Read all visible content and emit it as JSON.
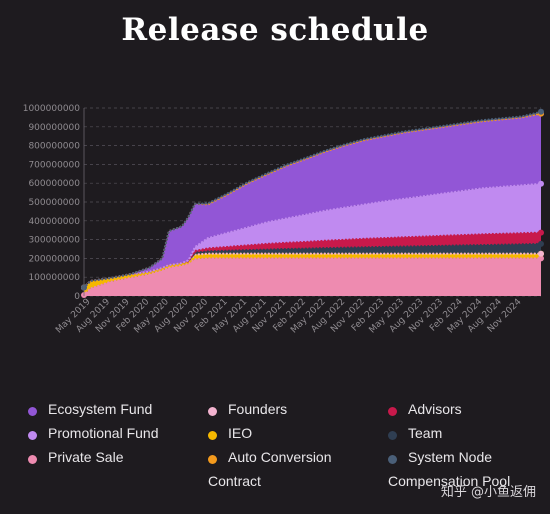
{
  "title": "Release schedule",
  "watermark": "知乎 @小鱼返佣",
  "chart_data": {
    "type": "area",
    "stacked": true,
    "title": "Release schedule",
    "xlabel": "",
    "ylabel": "",
    "ylim": [
      0,
      1000000000
    ],
    "y_ticks": [
      "0",
      "100000000",
      "200000000",
      "300000000",
      "400000000",
      "500000000",
      "600000000",
      "700000000",
      "800000000",
      "900000000",
      "1000000000"
    ],
    "x_ticks": [
      "May 2019",
      "Aug 2019",
      "Nov 2019",
      "Feb 2020",
      "May 2020",
      "Aug 2020",
      "Nov 2020",
      "Feb 2021",
      "May 2021",
      "Aug 2021",
      "Nov 2021",
      "Feb 2022",
      "May 2022",
      "Aug 2022",
      "Nov 2022",
      "Feb 2023",
      "May 2023",
      "Aug 2023",
      "Nov 2023",
      "Feb 2024",
      "May 2024",
      "Aug 2024",
      "Nov 2024"
    ],
    "grid": true,
    "legend_position": "bottom",
    "x": [
      "Apr 2019",
      "May 2019",
      "Aug 2019",
      "Nov 2019",
      "Feb 2020",
      "Apr 2020",
      "May 2020",
      "Jul 2020",
      "Aug 2020",
      "Sep 2020",
      "Nov 2020",
      "Feb 2021",
      "May 2021",
      "Aug 2021",
      "Nov 2021",
      "Feb 2022",
      "May 2022",
      "Aug 2022",
      "Nov 2022",
      "Feb 2023",
      "May 2023",
      "Aug 2023",
      "Nov 2023",
      "Feb 2024",
      "May 2024",
      "Aug 2024",
      "Nov 2024",
      "Feb 2025"
    ],
    "series": [
      {
        "name": "Private Sale",
        "color": "#ee8bb0",
        "values": [
          5000000,
          40000000,
          75000000,
          95000000,
          115000000,
          135000000,
          150000000,
          160000000,
          170000000,
          195000000,
          200000000,
          200000000,
          200000000,
          200000000,
          200000000,
          200000000,
          200000000,
          200000000,
          200000000,
          200000000,
          200000000,
          200000000,
          200000000,
          200000000,
          200000000,
          200000000,
          200000000,
          200000000
        ]
      },
      {
        "name": "IEO",
        "color": "#f5b800",
        "values": [
          40000000,
          40000000,
          20000000,
          20000000,
          15000000,
          15000000,
          15000000,
          15000000,
          15000000,
          25000000,
          25000000,
          25000000,
          25000000,
          25000000,
          25000000,
          25000000,
          25000000,
          25000000,
          25000000,
          25000000,
          25000000,
          25000000,
          25000000,
          25000000,
          25000000,
          25000000,
          25000000,
          25000000
        ]
      },
      {
        "name": "Founders",
        "color": "#f3b3cf",
        "values": [
          0,
          0,
          0,
          0,
          0,
          0,
          0,
          0,
          0,
          0,
          0,
          0,
          0,
          0,
          0,
          0,
          0,
          0,
          0,
          0,
          0,
          0,
          0,
          0,
          0,
          0,
          0,
          0
        ]
      },
      {
        "name": "Team",
        "color": "#2f3e52",
        "values": [
          0,
          0,
          0,
          0,
          0,
          0,
          0,
          0,
          0,
          10000000,
          13000000,
          16000000,
          19000000,
          22000000,
          25000000,
          27000000,
          30000000,
          32000000,
          34000000,
          36000000,
          38000000,
          40000000,
          42000000,
          44000000,
          46000000,
          48000000,
          50000000,
          52000000
        ]
      },
      {
        "name": "Advisors",
        "color": "#c8194b",
        "values": [
          0,
          0,
          0,
          0,
          0,
          0,
          0,
          0,
          0,
          10000000,
          15000000,
          20000000,
          25000000,
          30000000,
          33000000,
          36000000,
          39000000,
          42000000,
          45000000,
          47000000,
          49000000,
          51000000,
          53000000,
          55000000,
          57000000,
          58000000,
          59000000,
          60000000
        ]
      },
      {
        "name": "Promotional Fund",
        "color": "#c08af0",
        "values": [
          0,
          0,
          0,
          0,
          0,
          0,
          0,
          0,
          5000000,
          20000000,
          55000000,
          75000000,
          95000000,
          115000000,
          130000000,
          145000000,
          160000000,
          172000000,
          183000000,
          195000000,
          205000000,
          215000000,
          225000000,
          235000000,
          245000000,
          250000000,
          255000000,
          260000000
        ]
      },
      {
        "name": "Ecosystem Fund",
        "color": "#9256d6",
        "values": [
          0,
          0,
          0,
          0,
          20000000,
          50000000,
          180000000,
          195000000,
          230000000,
          230000000,
          180000000,
          205000000,
          235000000,
          255000000,
          280000000,
          297000000,
          315000000,
          331000000,
          343000000,
          347000000,
          353000000,
          354000000,
          355000000,
          356000000,
          357000000,
          359000000,
          361000000,
          373000000
        ]
      },
      {
        "name": "Auto Conversion Contract",
        "color": "#f39a1d",
        "values": [
          0,
          0,
          0,
          0,
          0,
          0,
          0,
          0,
          0,
          0,
          0,
          0,
          0,
          0,
          0,
          0,
          0,
          0,
          0,
          0,
          0,
          0,
          0,
          0,
          0,
          0,
          0,
          0
        ]
      },
      {
        "name": "System Node Compensation Pool",
        "color": "#4a5f78",
        "values": [
          0,
          0,
          0,
          0,
          0,
          0,
          0,
          0,
          0,
          0,
          5000000,
          5000000,
          5000000,
          5000000,
          5000000,
          5000000,
          5000000,
          5000000,
          5000000,
          5000000,
          5000000,
          5000000,
          5000000,
          5000000,
          5000000,
          5000000,
          5000000,
          10000000
        ]
      }
    ]
  },
  "legend": [
    {
      "label": "Ecosystem Fund",
      "color": "#9256d6"
    },
    {
      "label": "Founders",
      "color": "#f3b3cf"
    },
    {
      "label": "Advisors",
      "color": "#c8194b"
    },
    {
      "label": "Promotional Fund",
      "color": "#c08af0"
    },
    {
      "label": "IEO",
      "color": "#f5b800"
    },
    {
      "label": "Team",
      "color": "#2f3e52"
    },
    {
      "label": "Private Sale",
      "color": "#ee8bb0"
    },
    {
      "label": "Auto Conversion Contract",
      "color": "#f39a1d"
    },
    {
      "label": "System Node Compensation Pool",
      "color": "#4a5f78"
    }
  ]
}
